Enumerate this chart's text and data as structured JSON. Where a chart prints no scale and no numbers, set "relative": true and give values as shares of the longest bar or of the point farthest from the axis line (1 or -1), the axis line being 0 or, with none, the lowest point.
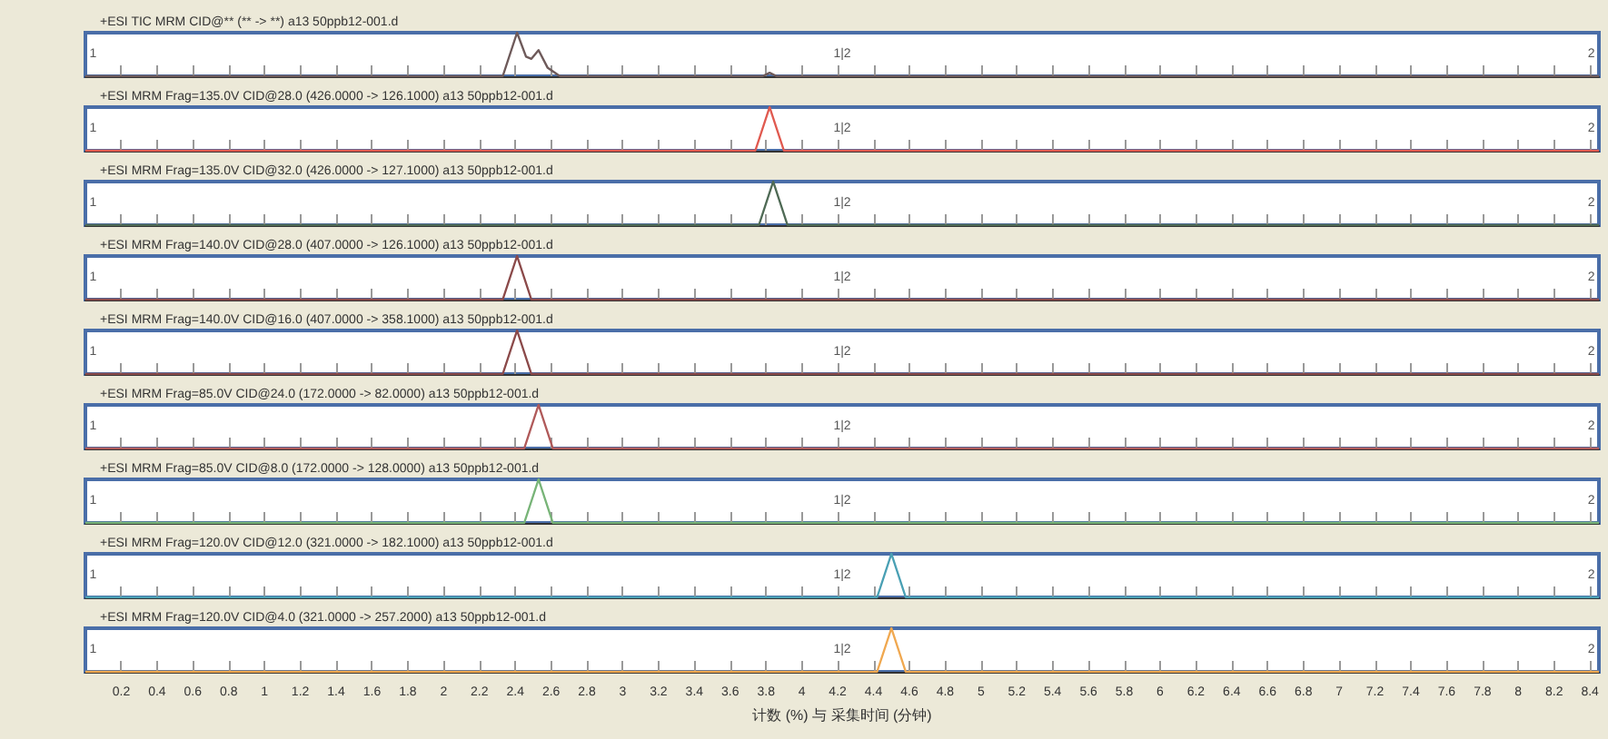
{
  "chart_data": [
    {
      "type": "line",
      "relative": true,
      "title": "+ESI TIC MRM CID@** (** -> **) a13 50ppb12-001.d",
      "color": "#6e5a5a",
      "x": [
        0,
        2.33,
        2.37,
        2.41,
        2.46,
        2.49,
        2.53,
        2.58,
        2.65,
        3.78,
        3.82,
        3.86,
        8.45
      ],
      "values": [
        0,
        0,
        0.5,
        1,
        0.45,
        0.4,
        0.6,
        0.2,
        0,
        0,
        0.08,
        0,
        0
      ],
      "xlim": [
        0,
        8.45
      ],
      "xticks": [
        0.2,
        0.4,
        0.6,
        0.8,
        1,
        1.2,
        1.4,
        1.6,
        1.8,
        2,
        2.2,
        2.4,
        2.6,
        2.8,
        3,
        3.2,
        3.4,
        3.6,
        3.8,
        4,
        4.2,
        4.4,
        4.6,
        4.8,
        5,
        5.2,
        5.4,
        5.6,
        5.8,
        6,
        6.2,
        6.4,
        6.6,
        6.8,
        7,
        7.2,
        7.4,
        7.6,
        7.8,
        8,
        8.2,
        8.4
      ],
      "tick_labels": false,
      "annotations": [
        "1",
        "1|2",
        "2"
      ]
    },
    {
      "type": "line",
      "relative": true,
      "title": "+ESI MRM Frag=135.0V CID@28.0 (426.0000 -> 126.1000) a13 50ppb12-001.d",
      "color": "#e05a50",
      "x": [
        0,
        3.74,
        3.78,
        3.82,
        3.86,
        3.9,
        8.45
      ],
      "values": [
        0,
        0,
        0.5,
        1,
        0.5,
        0,
        0
      ],
      "xlim": [
        0,
        8.45
      ],
      "xticks": [
        0.2,
        0.4,
        0.6,
        0.8,
        1,
        1.2,
        1.4,
        1.6,
        1.8,
        2,
        2.2,
        2.4,
        2.6,
        2.8,
        3,
        3.2,
        3.4,
        3.6,
        3.8,
        4,
        4.2,
        4.4,
        4.6,
        4.8,
        5,
        5.2,
        5.4,
        5.6,
        5.8,
        6,
        6.2,
        6.4,
        6.6,
        6.8,
        7,
        7.2,
        7.4,
        7.6,
        7.8,
        8,
        8.2,
        8.4
      ],
      "tick_labels": false,
      "annotations": [
        "1",
        "1|2",
        "2"
      ]
    },
    {
      "type": "line",
      "relative": true,
      "title": "+ESI MRM Frag=135.0V CID@32.0 (426.0000 -> 127.1000) a13 50ppb12-001.d",
      "color": "#4f6a55",
      "x": [
        0,
        3.76,
        3.8,
        3.84,
        3.88,
        3.92,
        8.45
      ],
      "values": [
        0,
        0,
        0.5,
        1,
        0.5,
        0,
        0
      ],
      "xlim": [
        0,
        8.45
      ],
      "xticks": [
        0.2,
        0.4,
        0.6,
        0.8,
        1,
        1.2,
        1.4,
        1.6,
        1.8,
        2,
        2.2,
        2.4,
        2.6,
        2.8,
        3,
        3.2,
        3.4,
        3.6,
        3.8,
        4,
        4.2,
        4.4,
        4.6,
        4.8,
        5,
        5.2,
        5.4,
        5.6,
        5.8,
        6,
        6.2,
        6.4,
        6.6,
        6.8,
        7,
        7.2,
        7.4,
        7.6,
        7.8,
        8,
        8.2,
        8.4
      ],
      "tick_labels": false,
      "annotations": [
        "1",
        "1|2",
        "2"
      ]
    },
    {
      "type": "line",
      "relative": true,
      "title": "+ESI MRM Frag=140.0V CID@28.0 (407.0000 -> 126.1000) a13 50ppb12-001.d",
      "color": "#8b4a4a",
      "x": [
        0,
        2.33,
        2.37,
        2.41,
        2.45,
        2.49,
        8.45
      ],
      "values": [
        0,
        0,
        0.5,
        1,
        0.5,
        0,
        0
      ],
      "xlim": [
        0,
        8.45
      ],
      "xticks": [
        0.2,
        0.4,
        0.6,
        0.8,
        1,
        1.2,
        1.4,
        1.6,
        1.8,
        2,
        2.2,
        2.4,
        2.6,
        2.8,
        3,
        3.2,
        3.4,
        3.6,
        3.8,
        4,
        4.2,
        4.4,
        4.6,
        4.8,
        5,
        5.2,
        5.4,
        5.6,
        5.8,
        6,
        6.2,
        6.4,
        6.6,
        6.8,
        7,
        7.2,
        7.4,
        7.6,
        7.8,
        8,
        8.2,
        8.4
      ],
      "tick_labels": false,
      "annotations": [
        "1",
        "1|2",
        "2"
      ]
    },
    {
      "type": "line",
      "relative": true,
      "title": "+ESI MRM Frag=140.0V CID@16.0 (407.0000 -> 358.1000) a13 50ppb12-001.d",
      "color": "#8b4a4a",
      "x": [
        0,
        2.33,
        2.37,
        2.41,
        2.45,
        2.49,
        8.45
      ],
      "values": [
        0,
        0,
        0.5,
        1,
        0.5,
        0,
        0
      ],
      "xlim": [
        0,
        8.45
      ],
      "xticks": [
        0.2,
        0.4,
        0.6,
        0.8,
        1,
        1.2,
        1.4,
        1.6,
        1.8,
        2,
        2.2,
        2.4,
        2.6,
        2.8,
        3,
        3.2,
        3.4,
        3.6,
        3.8,
        4,
        4.2,
        4.4,
        4.6,
        4.8,
        5,
        5.2,
        5.4,
        5.6,
        5.8,
        6,
        6.2,
        6.4,
        6.6,
        6.8,
        7,
        7.2,
        7.4,
        7.6,
        7.8,
        8,
        8.2,
        8.4
      ],
      "tick_labels": false,
      "annotations": [
        "1",
        "1|2",
        "2"
      ]
    },
    {
      "type": "line",
      "relative": true,
      "title": "+ESI MRM Frag=85.0V CID@24.0 (172.0000 -> 82.0000) a13 50ppb12-001.d",
      "color": "#b05a5a",
      "x": [
        0,
        2.45,
        2.49,
        2.53,
        2.57,
        2.61,
        8.45
      ],
      "values": [
        0,
        0,
        0.5,
        1,
        0.5,
        0,
        0
      ],
      "xlim": [
        0,
        8.45
      ],
      "xticks": [
        0.2,
        0.4,
        0.6,
        0.8,
        1,
        1.2,
        1.4,
        1.6,
        1.8,
        2,
        2.2,
        2.4,
        2.6,
        2.8,
        3,
        3.2,
        3.4,
        3.6,
        3.8,
        4,
        4.2,
        4.4,
        4.6,
        4.8,
        5,
        5.2,
        5.4,
        5.6,
        5.8,
        6,
        6.2,
        6.4,
        6.6,
        6.8,
        7,
        7.2,
        7.4,
        7.6,
        7.8,
        8,
        8.2,
        8.4
      ],
      "tick_labels": false,
      "annotations": [
        "1",
        "1|2",
        "2"
      ]
    },
    {
      "type": "line",
      "relative": true,
      "title": "+ESI MRM Frag=85.0V CID@8.0 (172.0000 -> 128.0000) a13 50ppb12-001.d",
      "color": "#78b478",
      "x": [
        0,
        2.45,
        2.49,
        2.53,
        2.57,
        2.61,
        8.45
      ],
      "values": [
        0,
        0,
        0.5,
        1,
        0.5,
        0,
        0
      ],
      "xlim": [
        0,
        8.45
      ],
      "xticks": [
        0.2,
        0.4,
        0.6,
        0.8,
        1,
        1.2,
        1.4,
        1.6,
        1.8,
        2,
        2.2,
        2.4,
        2.6,
        2.8,
        3,
        3.2,
        3.4,
        3.6,
        3.8,
        4,
        4.2,
        4.4,
        4.6,
        4.8,
        5,
        5.2,
        5.4,
        5.6,
        5.8,
        6,
        6.2,
        6.4,
        6.6,
        6.8,
        7,
        7.2,
        7.4,
        7.6,
        7.8,
        8,
        8.2,
        8.4
      ],
      "tick_labels": false,
      "annotations": [
        "1",
        "1|2",
        "2"
      ]
    },
    {
      "type": "line",
      "relative": true,
      "title": "+ESI MRM Frag=120.0V CID@12.0 (321.0000 -> 182.1000) a13 50ppb12-001.d",
      "color": "#4aa0b4",
      "x": [
        0,
        4.42,
        4.46,
        4.5,
        4.54,
        4.58,
        8.45
      ],
      "values": [
        0,
        0,
        0.5,
        1,
        0.5,
        0,
        0
      ],
      "xlim": [
        0,
        8.45
      ],
      "xticks": [
        0.2,
        0.4,
        0.6,
        0.8,
        1,
        1.2,
        1.4,
        1.6,
        1.8,
        2,
        2.2,
        2.4,
        2.6,
        2.8,
        3,
        3.2,
        3.4,
        3.6,
        3.8,
        4,
        4.2,
        4.4,
        4.6,
        4.8,
        5,
        5.2,
        5.4,
        5.6,
        5.8,
        6,
        6.2,
        6.4,
        6.6,
        6.8,
        7,
        7.2,
        7.4,
        7.6,
        7.8,
        8,
        8.2,
        8.4
      ],
      "tick_labels": false,
      "annotations": [
        "1",
        "1|2",
        "2"
      ]
    },
    {
      "type": "line",
      "relative": true,
      "title": "+ESI MRM Frag=120.0V CID@4.0 (321.0000 -> 257.2000) a13 50ppb12-001.d",
      "color": "#f0a850",
      "x": [
        0,
        4.42,
        4.46,
        4.5,
        4.54,
        4.58,
        8.45
      ],
      "values": [
        0,
        0,
        0.5,
        1,
        0.5,
        0,
        0
      ],
      "xlim": [
        0,
        8.45
      ],
      "xticks": [
        0.2,
        0.4,
        0.6,
        0.8,
        1,
        1.2,
        1.4,
        1.6,
        1.8,
        2,
        2.2,
        2.4,
        2.6,
        2.8,
        3,
        3.2,
        3.4,
        3.6,
        3.8,
        4,
        4.2,
        4.4,
        4.6,
        4.8,
        5,
        5.2,
        5.4,
        5.6,
        5.8,
        6,
        6.2,
        6.4,
        6.6,
        6.8,
        7,
        7.2,
        7.4,
        7.6,
        7.8,
        8,
        8.2,
        8.4
      ],
      "tick_labels": "x",
      "xlabel": "计数 (%) 与 采集时间 (分钟)",
      "annotations": [
        "1",
        "1|2",
        "2"
      ]
    }
  ]
}
